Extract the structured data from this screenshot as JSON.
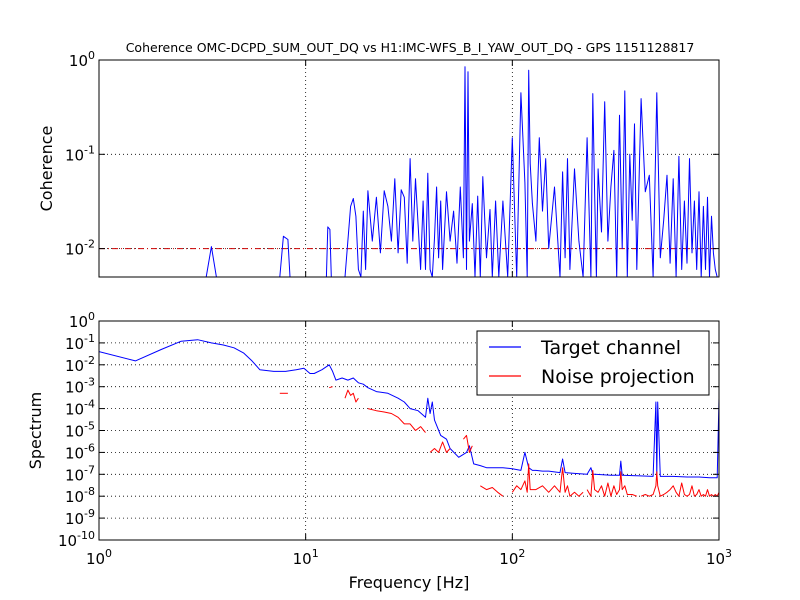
{
  "figure": {
    "title": "Coherence OMC-DCPD_SUM_OUT_DQ vs H1:IMC-WFS_B_I_YAW_OUT_DQ - GPS 1151128817",
    "shared_xlabel": "Frequency [Hz]",
    "colors": {
      "target": "#0000ff",
      "noise": "#ff0000",
      "threshold": "#cc0000",
      "grid": "#000000",
      "axes": "#000000",
      "background": "#ffffff"
    }
  },
  "chart_data": [
    {
      "type": "line",
      "panel": "coherence",
      "title": "Coherence OMC-DCPD_SUM_OUT_DQ vs H1:IMC-WFS_B_I_YAW_OUT_DQ - GPS 1151128817",
      "xlabel": "",
      "ylabel": "Coherence",
      "xscale": "log",
      "yscale": "log",
      "xlim": [
        1,
        1000
      ],
      "ylim": [
        0.005,
        1
      ],
      "grid": true,
      "xticks": [
        {
          "base": "10",
          "exp": "0",
          "value": 1
        },
        {
          "base": "10",
          "exp": "1",
          "value": 10
        },
        {
          "base": "10",
          "exp": "2",
          "value": 100
        },
        {
          "base": "10",
          "exp": "3",
          "value": 1000
        }
      ],
      "yticks": [
        {
          "base": "10",
          "exp": "0",
          "value": 1
        },
        {
          "base": "10",
          "exp": "-1",
          "value": 0.1
        },
        {
          "base": "10",
          "exp": "-2",
          "value": 0.01
        }
      ],
      "threshold": 0.01,
      "series": [
        {
          "color": "#0000ff",
          "x": [
            3.3,
            3.5,
            3.7,
            7.5,
            7.8,
            8.2,
            8.4,
            12.6,
            12.8,
            13.1,
            13.3,
            15.5,
            16.5,
            17.0,
            17.5,
            18.0,
            18.5,
            19.0,
            19.5,
            20.0,
            21.0,
            22.0,
            23.0,
            24.0,
            25.0,
            26.0,
            27.0,
            28.0,
            29.0,
            30.0,
            31.0,
            32.0,
            33.0,
            34.0,
            35.0,
            36.0,
            37.0,
            38.0,
            39.0,
            40.0,
            41.0,
            42.0,
            43.0,
            44.0,
            45.0,
            46.0,
            48.0,
            50.0,
            52.0,
            54.0,
            56.0,
            58.0,
            59.0,
            60.0,
            61.0,
            62.0,
            64.0,
            66.0,
            68.0,
            70.0,
            72.0,
            75.0,
            78.0,
            80.0,
            83.0,
            86.0,
            90.0,
            95.0,
            100.0,
            105.0,
            110.0,
            115.0,
            118.0,
            120.0,
            122.0,
            125.0,
            130.0,
            135.0,
            140.0,
            145.0,
            150.0,
            160.0,
            170.0,
            175.0,
            180.0,
            185.0,
            190.0,
            200.0,
            210.0,
            220.0,
            230.0,
            240.0,
            245.0,
            250.0,
            255.0,
            260.0,
            270.0,
            280.0,
            290.0,
            300.0,
            310.0,
            320.0,
            330.0,
            340.0,
            350.0,
            360.0,
            370.0,
            380.0,
            390.0,
            400.0,
            420.0,
            440.0,
            460.0,
            480.0,
            500.0,
            520.0,
            540.0,
            560.0,
            580.0,
            600.0,
            620.0,
            640.0,
            660.0,
            680.0,
            700.0,
            720.0,
            740.0,
            760.0,
            780.0,
            800.0,
            820.0,
            840.0,
            860.0,
            880.0,
            900.0,
            920.0,
            940.0,
            960.0,
            980.0
          ],
          "y": [
            0.005,
            0.0105,
            0.005,
            0.005,
            0.0135,
            0.0125,
            0.005,
            0.005,
            0.017,
            0.016,
            0.005,
            0.005,
            0.028,
            0.034,
            0.022,
            0.006,
            0.005,
            0.025,
            0.006,
            0.041,
            0.012,
            0.035,
            0.009,
            0.041,
            0.028,
            0.012,
            0.055,
            0.009,
            0.042,
            0.035,
            0.007,
            0.09,
            0.012,
            0.055,
            0.018,
            0.006,
            0.032,
            0.006,
            0.063,
            0.006,
            0.005,
            0.013,
            0.045,
            0.008,
            0.032,
            0.006,
            0.04,
            0.012,
            0.025,
            0.007,
            0.045,
            0.008,
            0.85,
            0.006,
            0.75,
            0.012,
            0.03,
            0.005,
            0.036,
            0.005,
            0.058,
            0.008,
            0.026,
            0.005,
            0.032,
            0.005,
            0.032,
            0.005,
            0.15,
            0.005,
            0.45,
            0.05,
            0.005,
            0.78,
            0.08,
            0.03,
            0.012,
            0.15,
            0.025,
            0.09,
            0.01,
            0.045,
            0.005,
            0.065,
            0.008,
            0.09,
            0.006,
            0.07,
            0.012,
            0.005,
            0.15,
            0.005,
            0.44,
            0.04,
            0.005,
            0.07,
            0.015,
            0.36,
            0.012,
            0.045,
            0.11,
            0.005,
            0.26,
            0.01,
            0.47,
            0.005,
            0.1,
            0.02,
            0.21,
            0.006,
            0.39,
            0.04,
            0.06,
            0.005,
            0.45,
            0.008,
            0.02,
            0.06,
            0.007,
            0.055,
            0.005,
            0.095,
            0.006,
            0.032,
            0.007,
            0.09,
            0.009,
            0.032,
            0.006,
            0.04,
            0.005,
            0.028,
            0.006,
            0.035,
            0.005,
            0.022,
            0.009,
            0.006,
            0.005
          ]
        }
      ]
    },
    {
      "type": "line",
      "panel": "spectrum",
      "title": "",
      "xlabel": "Frequency [Hz]",
      "ylabel": "Spectrum",
      "xscale": "log",
      "yscale": "log",
      "xlim": [
        1,
        1000
      ],
      "ylim": [
        1e-10,
        1
      ],
      "grid": true,
      "legend_position": "top-right",
      "xticks": [
        {
          "base": "10",
          "exp": "0",
          "value": 1
        },
        {
          "base": "10",
          "exp": "1",
          "value": 10
        },
        {
          "base": "10",
          "exp": "2",
          "value": 100
        },
        {
          "base": "10",
          "exp": "3",
          "value": 1000
        }
      ],
      "yticks": [
        {
          "base": "10",
          "exp": "0",
          "value": 1
        },
        {
          "base": "10",
          "exp": "-1",
          "value": 0.1
        },
        {
          "base": "10",
          "exp": "-2",
          "value": 0.01
        },
        {
          "base": "10",
          "exp": "-3",
          "value": 0.001
        },
        {
          "base": "10",
          "exp": "-4",
          "value": 0.0001
        },
        {
          "base": "10",
          "exp": "-5",
          "value": 1e-05
        },
        {
          "base": "10",
          "exp": "-6",
          "value": 1e-06
        },
        {
          "base": "10",
          "exp": "-7",
          "value": 1e-07
        },
        {
          "base": "10",
          "exp": "-8",
          "value": 1e-08
        },
        {
          "base": "10",
          "exp": "-9",
          "value": 1e-09
        },
        {
          "base": "10",
          "exp": "-10",
          "value": 1e-10
        }
      ],
      "series": [
        {
          "name": "Target channel",
          "color": "#0000ff",
          "x": [
            1.0,
            1.5,
            2.0,
            2.5,
            3.0,
            3.5,
            4.0,
            4.5,
            5.0,
            5.5,
            6.0,
            7.0,
            8.0,
            9.0,
            9.8,
            10.5,
            11.0,
            12.0,
            13.0,
            13.5,
            14.0,
            15.0,
            16.0,
            17.0,
            18.0,
            19.0,
            20.0,
            22.0,
            25.0,
            28.0,
            30.0,
            32.0,
            35.0,
            38.0,
            39.0,
            40.0,
            41.0,
            42.0,
            45.0,
            48.0,
            50.0,
            55.0,
            60.0,
            62.0,
            65.0,
            70.0,
            75.0,
            80.0,
            90.0,
            100.0,
            110.0,
            115.0,
            120.0,
            125.0,
            130.0,
            140.0,
            150.0,
            170.0,
            175.0,
            180.0,
            200.0,
            230.0,
            240.0,
            245.0,
            250.0,
            300.0,
            330.0,
            335.0,
            340.0,
            400.0,
            480.0,
            495.0,
            500.0,
            505.0,
            520.0,
            600.0,
            700.0,
            800.0,
            900.0,
            980.0,
            1000.0
          ],
          "y": [
            0.04,
            0.015,
            0.05,
            0.12,
            0.14,
            0.1,
            0.08,
            0.06,
            0.035,
            0.015,
            0.006,
            0.005,
            0.005,
            0.006,
            0.007,
            0.004,
            0.004,
            0.006,
            0.01,
            0.005,
            0.002,
            0.0025,
            0.002,
            0.0025,
            0.0015,
            0.0013,
            0.0009,
            0.0006,
            0.0005,
            0.0003,
            0.0002,
            0.0001,
            8e-05,
            4e-05,
            0.0003,
            6e-05,
            0.0002,
            3e-05,
            6e-06,
            4e-06,
            1.5e-06,
            6e-07,
            1e-06,
            2e-06,
            3e-07,
            2.5e-07,
            2e-07,
            2e-07,
            2e-07,
            1.8e-07,
            1.5e-07,
            1e-06,
            2e-07,
            1.5e-07,
            1.5e-07,
            1.4e-07,
            1.4e-07,
            1.2e-07,
            5e-07,
            1.2e-07,
            1.1e-07,
            1e-07,
            2e-07,
            1e-07,
            1e-07,
            9e-08,
            9e-08,
            4e-07,
            9e-08,
            8.5e-08,
            8e-08,
            0.0002,
            8e-08,
            0.0002,
            8e-08,
            8e-08,
            7.5e-08,
            7.5e-08,
            7e-08,
            7e-08,
            0.0003
          ]
        },
        {
          "name": "Noise projection",
          "color": "#ff0000",
          "segments": [
            {
              "x": [
                7.5,
                8.2
              ],
              "y": [
                0.0005,
                0.0005
              ]
            },
            {
              "x": [
                13.0,
                13.5
              ],
              "y": [
                0.0009,
                0.001
              ]
            },
            {
              "x": [
                15.5,
                16.0,
                16.5,
                17.0,
                17.5,
                18.0
              ],
              "y": [
                0.0003,
                0.0007,
                0.0004,
                0.0005,
                0.0002,
                0.0003
              ]
            },
            {
              "x": [
                20.0,
                22.0,
                24.0,
                26.0,
                28.0,
                30.0,
                32.0,
                34.0,
                36.0,
                38.0
              ],
              "y": [
                0.0001,
                8e-05,
                7e-05,
                6e-05,
                4e-05,
                2e-05,
                2e-05,
                1e-05,
                1.5e-05,
                8e-06
              ]
            },
            {
              "x": [
                40.0,
                42.0,
                44.0,
                46.0,
                48.0,
                50.0
              ],
              "y": [
                1e-06,
                1.5e-06,
                1e-06,
                3e-06,
                1e-06,
                1.5e-06
              ]
            },
            {
              "x": [
                58.0,
                60.0,
                62.0,
                64.0
              ],
              "y": [
                4e-06,
                6e-06,
                1e-06,
                2e-06
              ]
            },
            {
              "x": [
                70.0,
                75.0,
                80.0,
                85.0,
                90.0
              ],
              "y": [
                3e-08,
                2e-08,
                2.5e-08,
                1.5e-08,
                1e-08
              ]
            },
            {
              "x": [
                100.0,
                105.0,
                110.0,
                115.0,
                118.0,
                120.0,
                122.0,
                125.0,
                130.0,
                140.0,
                150.0,
                160.0,
                170.0,
                175.0,
                180.0,
                185.0,
                190.0,
                200.0,
                210.0,
                220.0
              ],
              "y": [
                1.5e-08,
                3e-08,
                2e-08,
                5e-08,
                1.5e-08,
                3e-07,
                2e-08,
                2e-08,
                2e-08,
                3e-08,
                1.5e-08,
                3e-08,
                1.5e-08,
                2e-07,
                1.5e-08,
                3e-08,
                1e-08,
                1.5e-08,
                1e-08,
                1.5e-08
              ]
            },
            {
              "x": [
                230.0,
                240.0,
                245.0,
                250.0,
                260.0,
                270.0,
                280.0,
                290.0,
                300.0,
                310.0,
                320.0,
                330.0,
                335.0,
                340.0,
                350.0,
                360.0,
                380.0,
                400.0
              ],
              "y": [
                2e-08,
                1e-08,
                1.5e-07,
                2e-08,
                1.5e-08,
                3e-08,
                1e-08,
                4e-08,
                1e-08,
                3e-08,
                1.2e-08,
                2e-08,
                1.3e-07,
                2e-08,
                3e-08,
                1.2e-08,
                1.2e-08,
                1e-08
              ]
            },
            {
              "x": [
                420.0,
                440.0,
                460.0,
                480.0,
                495.0,
                500.0,
                505.0,
                520.0,
                540.0,
                560.0,
                580.0,
                600.0,
                620.0,
                640.0,
                660.0,
                680.0,
                700.0,
                720.0,
                740.0,
                760.0,
                780.0,
                800.0,
                820.0,
                840.0,
                860.0,
                880.0,
                900.0,
                920.0,
                940.0,
                960.0,
                980.0,
                1000.0
              ],
              "y": [
                1e-08,
                1.2e-08,
                1e-08,
                1.2e-08,
                3e-08,
                1.3e-07,
                3e-08,
                1e-08,
                1.2e-08,
                1.5e-08,
                2e-08,
                3e-08,
                1.5e-08,
                1e-08,
                4e-08,
                1.2e-08,
                1e-08,
                1.2e-08,
                3e-08,
                1e-08,
                1.2e-08,
                2e-08,
                1e-08,
                1.2e-08,
                1e-08,
                2e-08,
                1e-08,
                1.2e-08,
                1e-08,
                1.2e-08,
                1e-08,
                1.5e-08
              ]
            }
          ]
        }
      ]
    }
  ]
}
